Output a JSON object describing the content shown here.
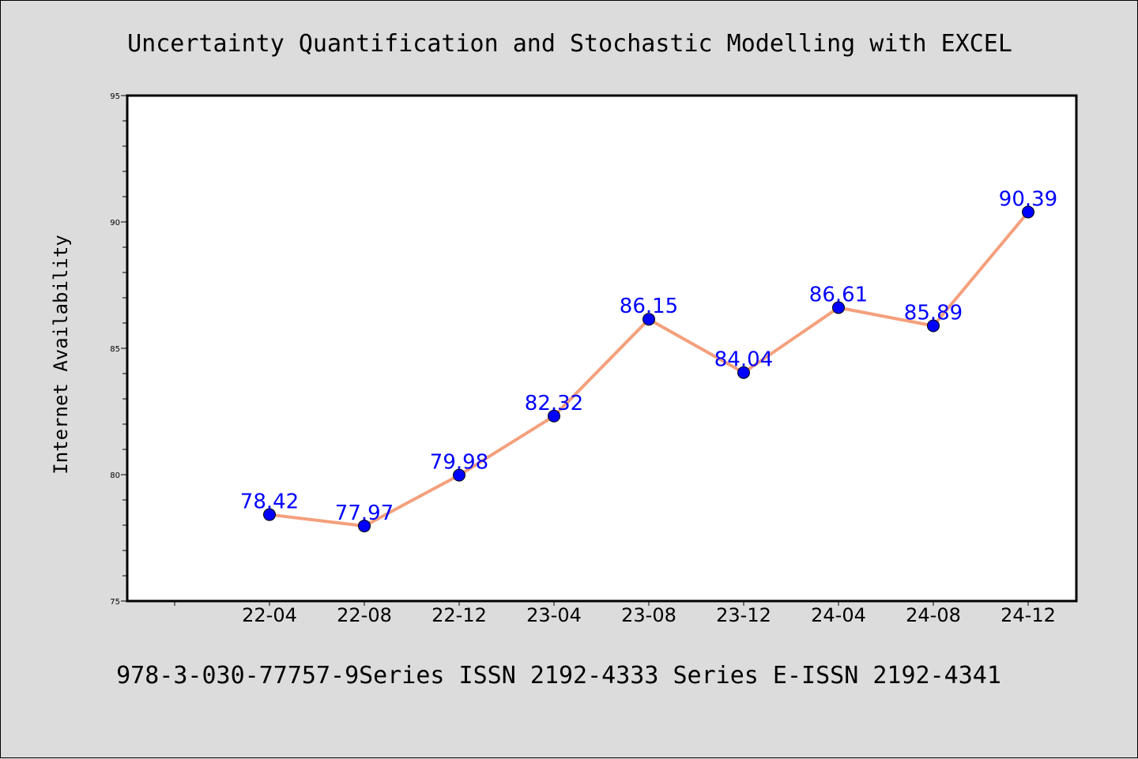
{
  "colors": {
    "background": "#dcdcdc",
    "plot_background": "#ffffff",
    "line": "#f4a07c",
    "marker": "#0000ff",
    "data_label": "#0000ff"
  },
  "chart_data": {
    "type": "line",
    "title": "Uncertainty Quantification and Stochastic Modelling with EXCEL",
    "xlabel": "",
    "ylabel": "Internet Availability",
    "footer": "978-3-030-77757-9Series ISSN 2192-4333 Series E-ISSN 2192-4341",
    "categories": [
      "22-04",
      "22-08",
      "22-12",
      "23-04",
      "23-08",
      "23-12",
      "24-04",
      "24-08",
      "24-12"
    ],
    "series": [
      {
        "values": [
          78.42,
          77.97,
          79.98,
          82.32,
          86.15,
          84.04,
          86.61,
          85.89,
          90.39
        ],
        "data_labels": [
          "78.42",
          "77.97",
          "79.98",
          "82.32",
          "86.15",
          "84.04",
          "86.61",
          "85.89",
          "90.39"
        ]
      }
    ],
    "ylim": [
      75,
      95
    ],
    "yticks": [
      "75",
      "80",
      "85",
      "90",
      "95"
    ],
    "grid": false,
    "legend": "none"
  }
}
